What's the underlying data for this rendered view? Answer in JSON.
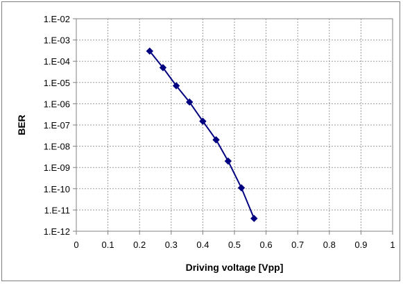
{
  "chart_data": {
    "type": "scatter",
    "title": "",
    "xlabel": "Driving voltage [Vpp]",
    "ylabel": "BER",
    "xlim": [
      0,
      1
    ],
    "ylim": [
      1e-12,
      0.01
    ],
    "y_scale": "log",
    "grid": true,
    "legend": "none",
    "x_ticks": [
      "0",
      "0.1",
      "0.2",
      "0.3",
      "0.4",
      "0.5",
      "0.6",
      "0.7",
      "0.8",
      "0.9",
      "1"
    ],
    "y_ticks": [
      "1.E-12",
      "1.E-11",
      "1.E-10",
      "1.E-09",
      "1.E-08",
      "1.E-07",
      "1.E-06",
      "1.E-05",
      "1.E-04",
      "1.E-03",
      "1.E-02"
    ],
    "series": [
      {
        "color": "#000080",
        "marker": "diamond",
        "x": [
          0.232,
          0.274,
          0.316,
          0.358,
          0.4,
          0.442,
          0.48,
          0.522,
          0.562
        ],
        "y": [
          0.0003,
          5e-05,
          7e-06,
          1.2e-06,
          1.5e-07,
          2e-08,
          2e-09,
          1.1e-10,
          4e-12
        ]
      }
    ]
  }
}
